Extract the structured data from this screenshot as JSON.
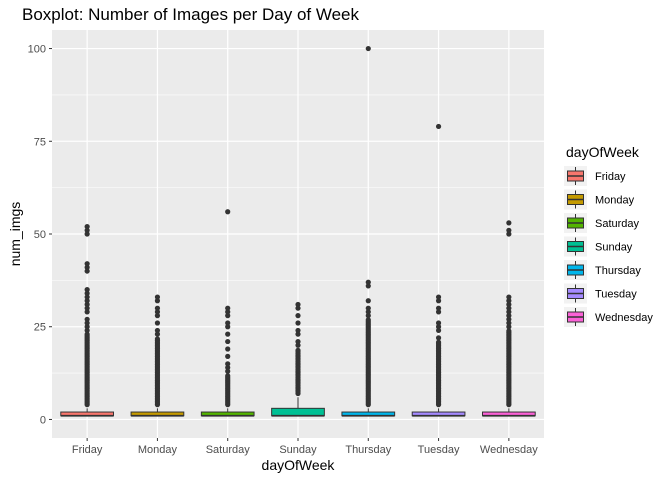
{
  "chart_data": {
    "type": "boxplot",
    "title": "Boxplot: Number of Images per Day of Week",
    "xlabel": "dayOfWeek",
    "ylabel": "num_imgs",
    "ylim": [
      -5,
      105
    ],
    "yticks": [
      0,
      25,
      50,
      75,
      100
    ],
    "grid": true,
    "legend": {
      "title": "dayOfWeek",
      "position": "right",
      "entries": [
        {
          "label": "Friday",
          "color": "#F8766D"
        },
        {
          "label": "Monday",
          "color": "#C49A00"
        },
        {
          "label": "Saturday",
          "color": "#53B400"
        },
        {
          "label": "Sunday",
          "color": "#00C094"
        },
        {
          "label": "Thursday",
          "color": "#00B6EB"
        },
        {
          "label": "Tuesday",
          "color": "#A58AFF"
        },
        {
          "label": "Wednesday",
          "color": "#FB61D7"
        }
      ]
    },
    "categories": [
      "Friday",
      "Monday",
      "Saturday",
      "Sunday",
      "Thursday",
      "Tuesday",
      "Wednesday"
    ],
    "boxes": [
      {
        "name": "Friday",
        "q1": 1,
        "median": 1,
        "q3": 2,
        "whisker_low": 1,
        "whisker_high": 3,
        "outlier_min": 4,
        "outlier_max": 23,
        "extra_outliers": [
          24,
          25,
          26,
          27,
          29,
          30,
          31,
          32,
          33,
          34,
          35,
          40,
          41,
          42,
          50,
          51,
          52
        ]
      },
      {
        "name": "Monday",
        "q1": 1,
        "median": 1,
        "q3": 2,
        "whisker_low": 1,
        "whisker_high": 3,
        "outlier_min": 4,
        "outlier_max": 22,
        "extra_outliers": [
          23,
          24,
          26,
          28,
          29,
          30,
          32,
          33
        ]
      },
      {
        "name": "Saturday",
        "q1": 1,
        "median": 1,
        "q3": 2,
        "whisker_low": 1,
        "whisker_high": 3,
        "outlier_min": 4,
        "outlier_max": 12,
        "extra_outliers": [
          13,
          14,
          15,
          17,
          19,
          21,
          23,
          25,
          26,
          28,
          29,
          30,
          56
        ]
      },
      {
        "name": "Sunday",
        "q1": 1,
        "median": 1,
        "q3": 3,
        "whisker_low": 1,
        "whisker_high": 6,
        "outlier_min": 7,
        "outlier_max": 19,
        "extra_outliers": [
          20,
          21,
          23,
          24,
          26,
          28,
          30,
          31
        ]
      },
      {
        "name": "Thursday",
        "q1": 1,
        "median": 1,
        "q3": 2,
        "whisker_low": 1,
        "whisker_high": 3,
        "outlier_min": 4,
        "outlier_max": 27,
        "extra_outliers": [
          28,
          29,
          30,
          32,
          36,
          37,
          100
        ]
      },
      {
        "name": "Tuesday",
        "q1": 1,
        "median": 1,
        "q3": 2,
        "whisker_low": 1,
        "whisker_high": 3,
        "outlier_min": 4,
        "outlier_max": 21,
        "extra_outliers": [
          22,
          24,
          25,
          26,
          29,
          30,
          32,
          33,
          79
        ]
      },
      {
        "name": "Wednesday",
        "q1": 1,
        "median": 1,
        "q3": 2,
        "whisker_low": 1,
        "whisker_high": 3,
        "outlier_min": 4,
        "outlier_max": 24,
        "extra_outliers": [
          25,
          26,
          27,
          28,
          29,
          30,
          31,
          32,
          33,
          50,
          51,
          53
        ]
      }
    ]
  }
}
